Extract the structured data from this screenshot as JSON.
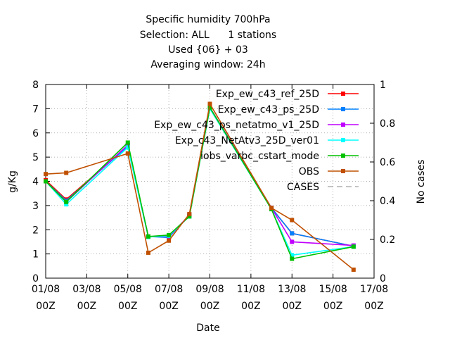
{
  "chart_data": {
    "type": "line",
    "title_lines": [
      "Specific humidity 700hPa",
      "Selection: ALL      1 stations",
      "Used {06} + 03",
      "Averaging window: 24h"
    ],
    "xlabel": "Date",
    "ylabel": "g/Kg",
    "y2label": "No cases",
    "xlim": [
      0,
      16
    ],
    "ylim": [
      0,
      8
    ],
    "y2lim": [
      0,
      1
    ],
    "x_ticks": [
      {
        "value": 0,
        "line1": "01/08",
        "line2": "00Z"
      },
      {
        "value": 2,
        "line1": "03/08",
        "line2": "00Z"
      },
      {
        "value": 4,
        "line1": "05/08",
        "line2": "00Z"
      },
      {
        "value": 6,
        "line1": "07/08",
        "line2": "00Z"
      },
      {
        "value": 8,
        "line1": "09/08",
        "line2": "00Z"
      },
      {
        "value": 10,
        "line1": "11/08",
        "line2": "00Z"
      },
      {
        "value": 12,
        "line1": "13/08",
        "line2": "00Z"
      },
      {
        "value": 14,
        "line1": "15/08",
        "line2": "00Z"
      },
      {
        "value": 16,
        "line1": "17/08",
        "line2": "00Z"
      }
    ],
    "y_ticks": [
      0,
      1,
      2,
      3,
      4,
      5,
      6,
      7,
      8
    ],
    "y2_ticks": [
      0,
      0.2,
      0.4,
      0.6,
      0.8,
      1
    ],
    "x": [
      0,
      1,
      4,
      5,
      6,
      7,
      8,
      11,
      12,
      15
    ],
    "series": [
      {
        "name": "Exp_ew_c43_ref_25D",
        "color": "#ff0000",
        "values": [
          4.05,
          3.25,
          5.45,
          1.72,
          1.7,
          2.6,
          7.05,
          2.9,
          1.85,
          1.32
        ]
      },
      {
        "name": "Exp_ew_c43_ps_25D",
        "color": "#0080ff",
        "values": [
          4.0,
          3.2,
          5.45,
          1.72,
          1.68,
          2.6,
          7.05,
          2.9,
          1.85,
          1.32
        ]
      },
      {
        "name": "Exp_ew_c43_ps_netatmo_v1_25D",
        "color": "#c000ff",
        "values": [
          4.0,
          3.15,
          5.5,
          1.72,
          1.72,
          2.6,
          7.05,
          2.9,
          1.5,
          1.35
        ]
      },
      {
        "name": "Exp_c43_NetAtv3_25D_ver01",
        "color": "#00ffff",
        "values": [
          4.0,
          3.05,
          5.4,
          1.7,
          1.75,
          2.55,
          7.0,
          2.85,
          0.95,
          1.3
        ]
      },
      {
        "name": "iobs_varbc_cstart_mode",
        "color": "#00c000",
        "values": [
          4.0,
          3.15,
          5.6,
          1.72,
          1.78,
          2.55,
          7.05,
          2.85,
          0.8,
          1.3
        ]
      },
      {
        "name": "OBS",
        "color": "#c05000",
        "values": [
          4.3,
          4.35,
          5.15,
          1.05,
          1.55,
          2.65,
          7.2,
          2.9,
          2.4,
          0.35
        ]
      }
    ],
    "cases_legend": {
      "name": "CASES",
      "color": "#a0a0a0"
    },
    "grid": true,
    "legend_position": "top-right"
  }
}
